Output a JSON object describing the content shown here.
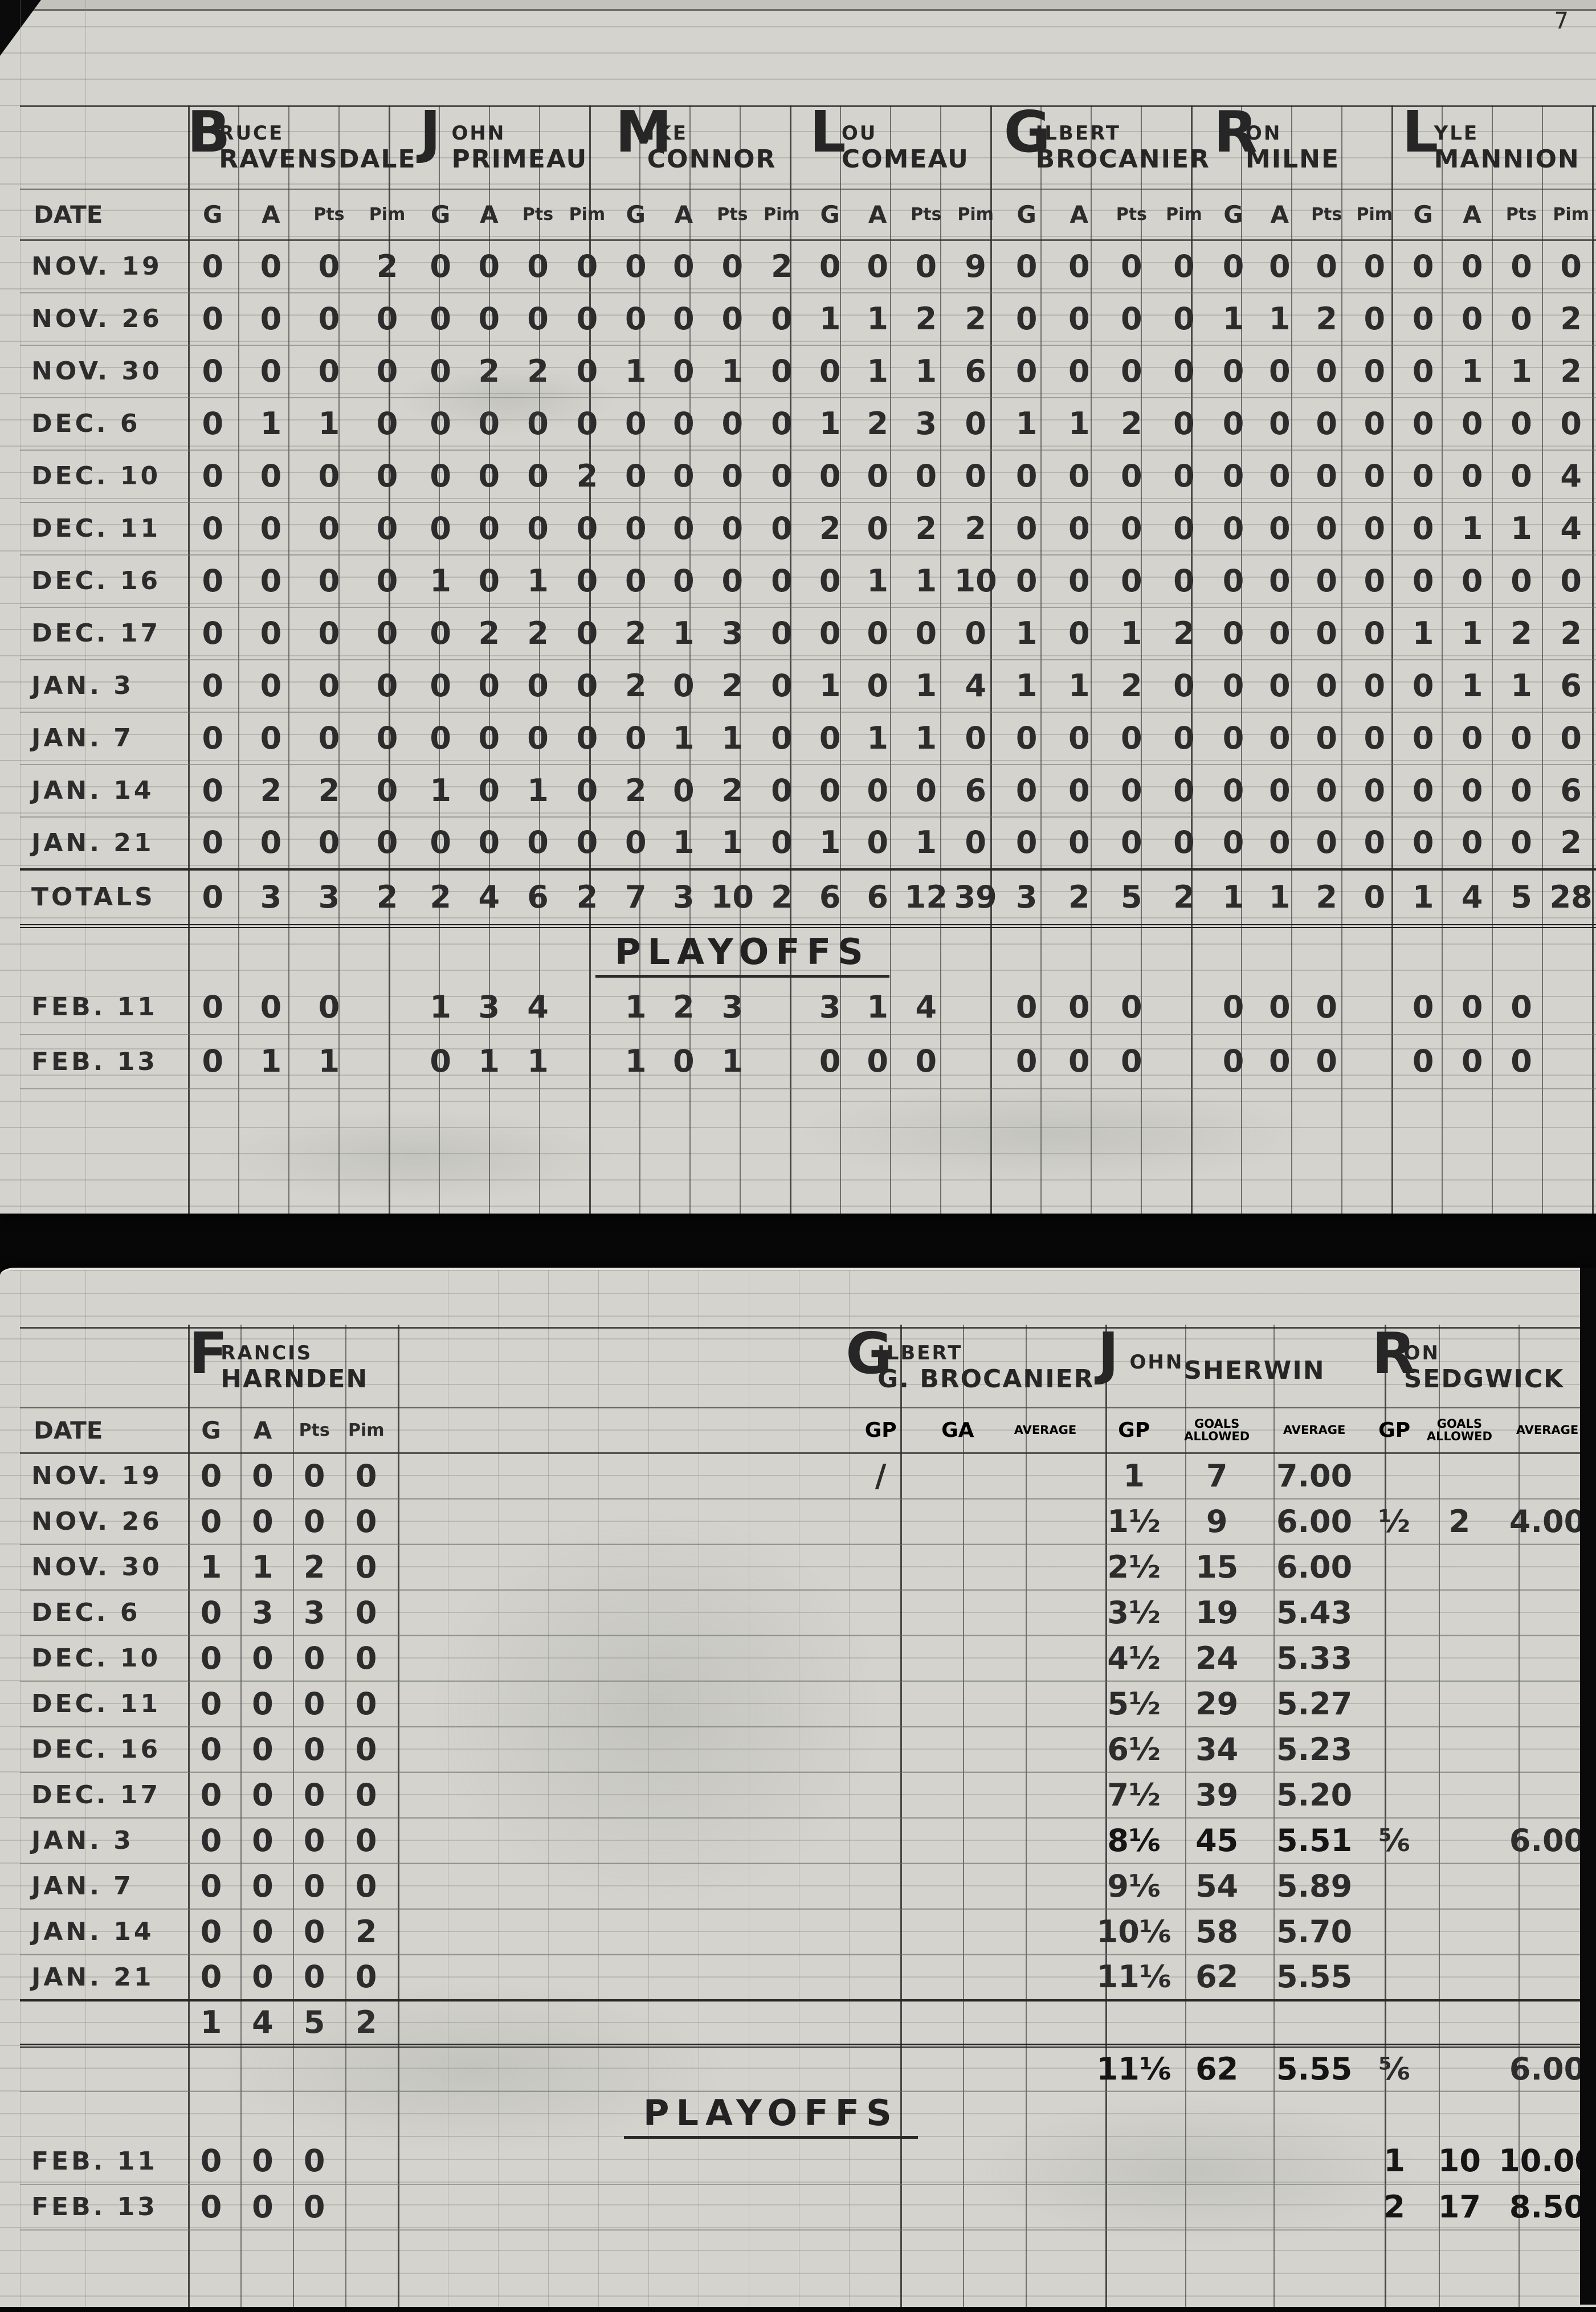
{
  "page_number": "7",
  "labels": {
    "date": "DATE",
    "totals": "TOTALS",
    "playoffs": "PLAYOFFS",
    "stat_columns": [
      "G",
      "A",
      "Pts",
      "Pim"
    ],
    "gp": "GP",
    "ga": "GA",
    "average": "AVERAGE",
    "goals_allowed": [
      "GOALS",
      "ALLOWED"
    ]
  },
  "top_sheet": {
    "players": [
      {
        "first": "BRUCE",
        "last": "RAVENSDALE"
      },
      {
        "first": "JOHN",
        "last": "PRIMEAU"
      },
      {
        "first": "MIKE",
        "last": "CONNOR"
      },
      {
        "first": "LOU",
        "last": "COMEAU"
      },
      {
        "first": "GILBERT",
        "last": "BROCANIER"
      },
      {
        "first": "RON",
        "last": "MILNE"
      },
      {
        "first": "LYLE",
        "last": "MANNION"
      }
    ],
    "rows": [
      {
        "date": "NOV. 19",
        "stats": [
          [
            "0",
            "0",
            "0",
            "2"
          ],
          [
            "0",
            "0",
            "0",
            "0"
          ],
          [
            "0",
            "0",
            "0",
            "2"
          ],
          [
            "0",
            "0",
            "0",
            "9"
          ],
          [
            "0",
            "0",
            "0",
            "0"
          ],
          [
            "0",
            "0",
            "0",
            "0"
          ],
          [
            "0",
            "0",
            "0",
            "0"
          ]
        ]
      },
      {
        "date": "NOV. 26",
        "stats": [
          [
            "0",
            "0",
            "0",
            "0"
          ],
          [
            "0",
            "0",
            "0",
            "0"
          ],
          [
            "0",
            "0",
            "0",
            "0"
          ],
          [
            "1",
            "1",
            "2",
            "2"
          ],
          [
            "0",
            "0",
            "0",
            "0"
          ],
          [
            "1",
            "1",
            "2",
            "0"
          ],
          [
            "0",
            "0",
            "0",
            "2"
          ]
        ]
      },
      {
        "date": "NOV. 30",
        "stats": [
          [
            "0",
            "0",
            "0",
            "0"
          ],
          [
            "0",
            "2",
            "2",
            "0"
          ],
          [
            "1",
            "0",
            "1",
            "0"
          ],
          [
            "0",
            "1",
            "1",
            "6"
          ],
          [
            "0",
            "0",
            "0",
            "0"
          ],
          [
            "0",
            "0",
            "0",
            "0"
          ],
          [
            "0",
            "1",
            "1",
            "2"
          ]
        ]
      },
      {
        "date": "DEC. 6",
        "stats": [
          [
            "0",
            "1",
            "1",
            "0"
          ],
          [
            "0",
            "0",
            "0",
            "0"
          ],
          [
            "0",
            "0",
            "0",
            "0"
          ],
          [
            "1",
            "2",
            "3",
            "0"
          ],
          [
            "1",
            "1",
            "2",
            "0"
          ],
          [
            "0",
            "0",
            "0",
            "0"
          ],
          [
            "0",
            "0",
            "0",
            "0"
          ]
        ]
      },
      {
        "date": "DEC. 10",
        "stats": [
          [
            "0",
            "0",
            "0",
            "0"
          ],
          [
            "0",
            "0",
            "0",
            "2"
          ],
          [
            "0",
            "0",
            "0",
            "0"
          ],
          [
            "0",
            "0",
            "0",
            "0"
          ],
          [
            "0",
            "0",
            "0",
            "0"
          ],
          [
            "0",
            "0",
            "0",
            "0"
          ],
          [
            "0",
            "0",
            "0",
            "4"
          ]
        ]
      },
      {
        "date": "DEC. 11",
        "stats": [
          [
            "0",
            "0",
            "0",
            "0"
          ],
          [
            "0",
            "0",
            "0",
            "0"
          ],
          [
            "0",
            "0",
            "0",
            "0"
          ],
          [
            "2",
            "0",
            "2",
            "2"
          ],
          [
            "0",
            "0",
            "0",
            "0"
          ],
          [
            "0",
            "0",
            "0",
            "0"
          ],
          [
            "0",
            "1",
            "1",
            "4"
          ]
        ]
      },
      {
        "date": "DEC. 16",
        "stats": [
          [
            "0",
            "0",
            "0",
            "0"
          ],
          [
            "1",
            "0",
            "1",
            "0"
          ],
          [
            "0",
            "0",
            "0",
            "0"
          ],
          [
            "0",
            "1",
            "1",
            "10"
          ],
          [
            "0",
            "0",
            "0",
            "0"
          ],
          [
            "0",
            "0",
            "0",
            "0"
          ],
          [
            "0",
            "0",
            "0",
            "0"
          ]
        ]
      },
      {
        "date": "DEC. 17",
        "stats": [
          [
            "0",
            "0",
            "0",
            "0"
          ],
          [
            "0",
            "2",
            "2",
            "0"
          ],
          [
            "2",
            "1",
            "3",
            "0"
          ],
          [
            "0",
            "0",
            "0",
            "0"
          ],
          [
            "1",
            "0",
            "1",
            "2"
          ],
          [
            "0",
            "0",
            "0",
            "0"
          ],
          [
            "1",
            "1",
            "2",
            "2"
          ]
        ]
      },
      {
        "date": "JAN. 3",
        "stats": [
          [
            "0",
            "0",
            "0",
            "0"
          ],
          [
            "0",
            "0",
            "0",
            "0"
          ],
          [
            "2",
            "0",
            "2",
            "0"
          ],
          [
            "1",
            "0",
            "1",
            "4"
          ],
          [
            "1",
            "1",
            "2",
            "0"
          ],
          [
            "0",
            "0",
            "0",
            "0"
          ],
          [
            "0",
            "1",
            "1",
            "6"
          ]
        ]
      },
      {
        "date": "JAN. 7",
        "stats": [
          [
            "0",
            "0",
            "0",
            "0"
          ],
          [
            "0",
            "0",
            "0",
            "0"
          ],
          [
            "0",
            "1",
            "1",
            "0"
          ],
          [
            "0",
            "1",
            "1",
            "0"
          ],
          [
            "0",
            "0",
            "0",
            "0"
          ],
          [
            "0",
            "0",
            "0",
            "0"
          ],
          [
            "0",
            "0",
            "0",
            "0"
          ]
        ]
      },
      {
        "date": "JAN. 14",
        "stats": [
          [
            "0",
            "2",
            "2",
            "0"
          ],
          [
            "1",
            "0",
            "1",
            "0"
          ],
          [
            "2",
            "0",
            "2",
            "0"
          ],
          [
            "0",
            "0",
            "0",
            "6"
          ],
          [
            "0",
            "0",
            "0",
            "0"
          ],
          [
            "0",
            "0",
            "0",
            "0"
          ],
          [
            "0",
            "0",
            "0",
            "6"
          ]
        ]
      },
      {
        "date": "JAN. 21",
        "stats": [
          [
            "0",
            "0",
            "0",
            "0"
          ],
          [
            "0",
            "0",
            "0",
            "0"
          ],
          [
            "0",
            "1",
            "1",
            "0"
          ],
          [
            "1",
            "0",
            "1",
            "0"
          ],
          [
            "0",
            "0",
            "0",
            "0"
          ],
          [
            "0",
            "0",
            "0",
            "0"
          ],
          [
            "0",
            "0",
            "0",
            "2"
          ]
        ]
      }
    ],
    "totals_row": {
      "stats": [
        [
          "0",
          "3",
          "3",
          "2"
        ],
        [
          "2",
          "4",
          "6",
          "2"
        ],
        [
          "7",
          "3",
          "10",
          "2"
        ],
        [
          "6",
          "6",
          "12",
          "39"
        ],
        [
          "3",
          "2",
          "5",
          "2"
        ],
        [
          "1",
          "1",
          "2",
          "0"
        ],
        [
          "1",
          "4",
          "5",
          "28"
        ]
      ]
    },
    "playoff_rows": [
      {
        "date": "FEB. 11",
        "stats": [
          [
            "0",
            "0",
            "0",
            ""
          ],
          [
            "1",
            "3",
            "4",
            ""
          ],
          [
            "1",
            "2",
            "3",
            ""
          ],
          [
            "3",
            "1",
            "4",
            ""
          ],
          [
            "0",
            "0",
            "0",
            ""
          ],
          [
            "0",
            "0",
            "0",
            ""
          ],
          [
            "0",
            "0",
            "0",
            ""
          ]
        ]
      },
      {
        "date": "FEB. 13",
        "stats": [
          [
            "0",
            "1",
            "1",
            ""
          ],
          [
            "0",
            "1",
            "1",
            ""
          ],
          [
            "1",
            "0",
            "1",
            ""
          ],
          [
            "0",
            "0",
            "0",
            ""
          ],
          [
            "0",
            "0",
            "0",
            ""
          ],
          [
            "0",
            "0",
            "0",
            ""
          ],
          [
            "0",
            "0",
            "0",
            ""
          ]
        ]
      }
    ]
  },
  "bottom_sheet": {
    "skater": {
      "first": "FRANCIS",
      "last": "HARNDEN"
    },
    "goalies": [
      {
        "first": "GILBERT",
        "last": "G. BROCANIER"
      },
      {
        "first": "JOHN",
        "last": "SHERWIN"
      },
      {
        "first": "RON",
        "last": "SEDGWICK"
      }
    ],
    "rows": [
      {
        "date": "NOV. 19",
        "harnden": [
          "0",
          "0",
          "0",
          "0"
        ],
        "brocanier": [
          "/",
          "",
          ""
        ],
        "sherwin": [
          "1",
          "7",
          "7.00"
        ],
        "sedgwick": [
          "",
          "",
          ""
        ]
      },
      {
        "date": "NOV. 26",
        "harnden": [
          "0",
          "0",
          "0",
          "0"
        ],
        "brocanier": [
          "",
          "",
          ""
        ],
        "sherwin": [
          "1½",
          "9",
          "6.00"
        ],
        "sedgwick": [
          "½",
          "2",
          "4.00"
        ]
      },
      {
        "date": "NOV. 30",
        "harnden": [
          "1",
          "1",
          "2",
          "0"
        ],
        "brocanier": [
          "",
          "",
          ""
        ],
        "sherwin": [
          "2½",
          "15",
          "6.00"
        ],
        "sedgwick": [
          "",
          "",
          ""
        ]
      },
      {
        "date": "DEC. 6",
        "harnden": [
          "0",
          "3",
          "3",
          "0"
        ],
        "brocanier": [
          "",
          "",
          ""
        ],
        "sherwin": [
          "3½",
          "19",
          "5.43"
        ],
        "sedgwick": [
          "",
          "",
          ""
        ]
      },
      {
        "date": "DEC. 10",
        "harnden": [
          "0",
          "0",
          "0",
          "0"
        ],
        "brocanier": [
          "",
          "",
          ""
        ],
        "sherwin": [
          "4½",
          "24",
          "5.33"
        ],
        "sedgwick": [
          "",
          "",
          ""
        ]
      },
      {
        "date": "DEC. 11",
        "harnden": [
          "0",
          "0",
          "0",
          "0"
        ],
        "brocanier": [
          "",
          "",
          ""
        ],
        "sherwin": [
          "5½",
          "29",
          "5.27"
        ],
        "sedgwick": [
          "",
          "",
          ""
        ]
      },
      {
        "date": "DEC. 16",
        "harnden": [
          "0",
          "0",
          "0",
          "0"
        ],
        "brocanier": [
          "",
          "",
          ""
        ],
        "sherwin": [
          "6½",
          "34",
          "5.23"
        ],
        "sedgwick": [
          "",
          "",
          ""
        ]
      },
      {
        "date": "DEC. 17",
        "harnden": [
          "0",
          "0",
          "0",
          "0"
        ],
        "brocanier": [
          "",
          "",
          ""
        ],
        "sherwin": [
          "7½",
          "39",
          "5.20"
        ],
        "sedgwick": [
          "",
          "",
          ""
        ]
      },
      {
        "date": "JAN. 3",
        "harnden": [
          "0",
          "0",
          "0",
          "0"
        ],
        "brocanier": [
          "",
          "",
          ""
        ],
        "sherwin": [
          "8⅙",
          "45",
          "5.51"
        ],
        "sedgwick": [
          "⅚",
          "",
          "6.00"
        ]
      },
      {
        "date": "JAN. 7",
        "harnden": [
          "0",
          "0",
          "0",
          "0"
        ],
        "brocanier": [
          "",
          "",
          ""
        ],
        "sherwin": [
          "9⅙",
          "54",
          "5.89"
        ],
        "sedgwick": [
          "",
          "",
          ""
        ]
      },
      {
        "date": "JAN. 14",
        "harnden": [
          "0",
          "0",
          "0",
          "2"
        ],
        "brocanier": [
          "",
          "",
          ""
        ],
        "sherwin": [
          "10⅙",
          "58",
          "5.70"
        ],
        "sedgwick": [
          "",
          "",
          ""
        ]
      },
      {
        "date": "JAN. 21",
        "harnden": [
          "0",
          "0",
          "0",
          "0"
        ],
        "brocanier": [
          "",
          "",
          ""
        ],
        "sherwin": [
          "11⅙",
          "62",
          "5.55"
        ],
        "sedgwick": [
          "",
          "",
          ""
        ]
      }
    ],
    "harnden_totals": [
      "1",
      "4",
      "5",
      "2"
    ],
    "season_summary": {
      "sherwin": [
        "11⅙",
        "62",
        "5.55"
      ],
      "sedgwick": [
        "⅚",
        "",
        "6.00"
      ]
    },
    "playoff_rows": [
      {
        "date": "FEB. 11",
        "harnden": [
          "0",
          "0",
          "0",
          ""
        ],
        "brocanier": [
          "",
          "",
          ""
        ],
        "sherwin": [
          "",
          "",
          ""
        ],
        "sedgwick": [
          "1",
          "10",
          "10.00"
        ]
      },
      {
        "date": "FEB. 13",
        "harnden": [
          "0",
          "0",
          "0",
          ""
        ],
        "brocanier": [
          "",
          "",
          ""
        ],
        "sherwin": [
          "",
          "",
          ""
        ],
        "sedgwick": [
          "2",
          "17",
          "8.50"
        ]
      }
    ]
  }
}
